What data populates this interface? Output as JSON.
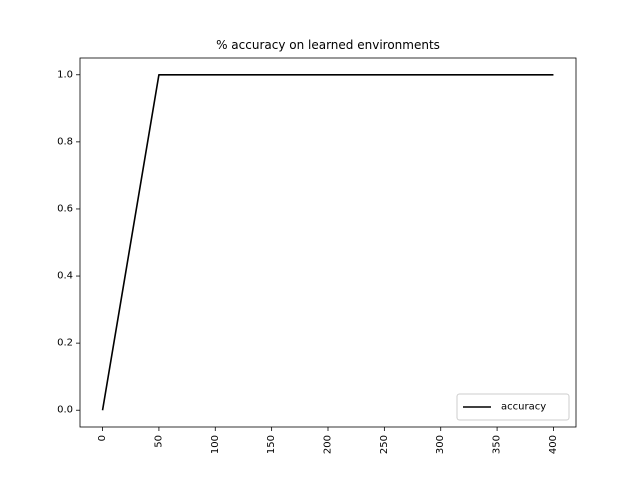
{
  "chart_data": {
    "type": "line",
    "title": "% accuracy on learned environments",
    "xlabel": "",
    "ylabel": "",
    "xlim": [
      -20,
      420
    ],
    "ylim": [
      -0.05,
      1.05
    ],
    "xticks": [
      0,
      50,
      100,
      150,
      200,
      250,
      300,
      350,
      400
    ],
    "yticks": [
      0.0,
      0.2,
      0.4,
      0.6,
      0.8,
      1.0
    ],
    "xtick_labels": [
      "0",
      "50",
      "100",
      "150",
      "200",
      "250",
      "300",
      "350",
      "400"
    ],
    "ytick_labels": [
      "0.0",
      "0.2",
      "0.4",
      "0.6",
      "0.8",
      "1.0"
    ],
    "xtick_rotation": "vertical",
    "grid": false,
    "legend_position": "bottom-right",
    "series": [
      {
        "name": "accuracy",
        "color": "#000000",
        "x": [
          0,
          50,
          100,
          150,
          200,
          250,
          300,
          350,
          400
        ],
        "y": [
          0.0,
          1.0,
          1.0,
          1.0,
          1.0,
          1.0,
          1.0,
          1.0,
          1.0
        ]
      }
    ]
  }
}
